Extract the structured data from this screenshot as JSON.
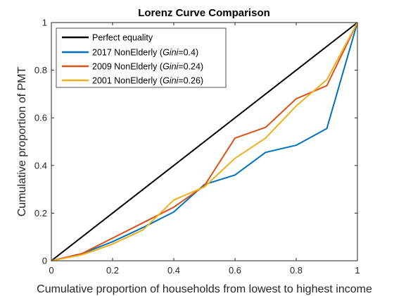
{
  "chart_data": {
    "type": "line",
    "title": "Lorenz Curve Comparison",
    "xlabel": "Cumulative proportion of households from lowest to highest income",
    "ylabel": "Cumulative proportion of PMT",
    "xlim": [
      0,
      1
    ],
    "ylim": [
      0,
      1
    ],
    "xticks": [
      0,
      0.2,
      0.4,
      0.6,
      0.8,
      1
    ],
    "yticks": [
      0,
      0.2,
      0.4,
      0.6,
      0.8,
      1
    ],
    "xtick_labels": [
      "0",
      "0.2",
      "0.4",
      "0.6",
      "0.8",
      "1"
    ],
    "ytick_labels": [
      "0",
      "0.2",
      "0.4",
      "0.6",
      "0.8",
      "1"
    ],
    "grid": false,
    "legend_position": "top-left",
    "series": [
      {
        "name": "Perfect equality",
        "legend_label": "Perfect equality",
        "gini": "",
        "color": "#000000",
        "x": [
          0,
          1
        ],
        "y": [
          0,
          1
        ]
      },
      {
        "name": "2017 NonElderly",
        "legend_label": "2017 NonElderly (",
        "gini": "0.4",
        "color": "#0072BD",
        "x": [
          0,
          0.1,
          0.2,
          0.3,
          0.4,
          0.5,
          0.6,
          0.7,
          0.8,
          0.9,
          1
        ],
        "y": [
          0,
          0.03,
          0.08,
          0.14,
          0.205,
          0.32,
          0.36,
          0.455,
          0.485,
          0.555,
          1
        ]
      },
      {
        "name": "2009 NonElderly",
        "legend_label": "2009 NonElderly (",
        "gini": "0.24",
        "color": "#D95319",
        "x": [
          0,
          0.1,
          0.2,
          0.3,
          0.4,
          0.5,
          0.6,
          0.7,
          0.8,
          0.9,
          1
        ],
        "y": [
          0,
          0.03,
          0.095,
          0.16,
          0.225,
          0.315,
          0.515,
          0.56,
          0.68,
          0.735,
          1
        ]
      },
      {
        "name": "2001 NonElderly",
        "legend_label": "2001 NonElderly (",
        "gini": "0.26",
        "color": "#EDB120",
        "x": [
          0,
          0.1,
          0.2,
          0.3,
          0.4,
          0.5,
          0.6,
          0.7,
          0.8,
          0.9,
          1
        ],
        "y": [
          0,
          0.025,
          0.07,
          0.13,
          0.255,
          0.31,
          0.43,
          0.515,
          0.65,
          0.76,
          1
        ]
      }
    ],
    "legend_gini_label": "Gini",
    "legend_gini_prefix": "=",
    "legend_gini_suffix": ")"
  }
}
